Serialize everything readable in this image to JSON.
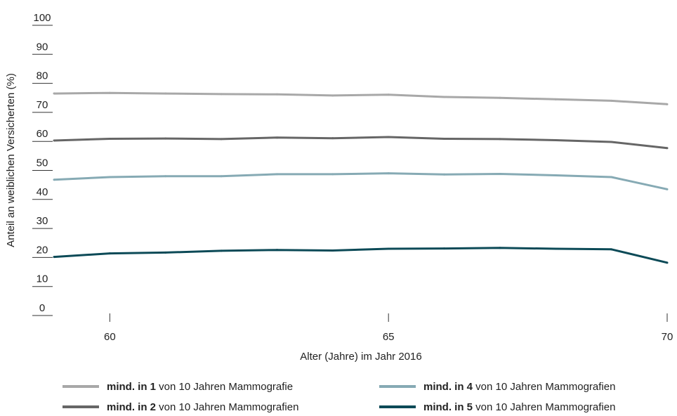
{
  "chart_data": {
    "type": "line",
    "xlabel": "Alter (Jahre) im Jahr 2016",
    "ylabel": "Anteil an weiblichen Versicherten (%)",
    "x": [
      59,
      60,
      61,
      62,
      63,
      64,
      65,
      66,
      67,
      68,
      69,
      70
    ],
    "xlim": [
      59,
      70
    ],
    "ylim": [
      0,
      100
    ],
    "xticks": [
      "60",
      "65",
      "70"
    ],
    "yticks": [
      "0",
      "10",
      "20",
      "30",
      "40",
      "50",
      "60",
      "70",
      "80",
      "90",
      "100"
    ],
    "grid": false,
    "legend_position": "bottom",
    "series": [
      {
        "name": "mind. in 1 von 10 Jahren Mammografie",
        "legend_bold": "mind. in 1",
        "legend_rest": " von 10 Jahren Mammografie",
        "color": "#a8a8a8",
        "values": [
          76.5,
          76.7,
          76.5,
          76.3,
          76.2,
          75.8,
          76.1,
          75.3,
          75.0,
          74.5,
          74.0,
          72.8
        ]
      },
      {
        "name": "mind. in 2 von 10 Jahren Mammografien",
        "legend_bold": "mind. in 2",
        "legend_rest": " von 10 Jahren Mammografien",
        "color": "#666666",
        "values": [
          60.3,
          60.9,
          61.0,
          60.8,
          61.3,
          61.1,
          61.5,
          60.9,
          60.8,
          60.4,
          59.8,
          57.7
        ]
      },
      {
        "name": "mind. in 4 von 10 Jahren Mammografien",
        "legend_bold": "mind. in 4",
        "legend_rest": " von 10 Jahren Mammografien",
        "color": "#86aab4",
        "values": [
          46.8,
          47.7,
          48.0,
          48.0,
          48.7,
          48.7,
          49.0,
          48.6,
          48.8,
          48.3,
          47.7,
          43.5
        ]
      },
      {
        "name": "mind. in 5 von 10 Jahren Mammografien",
        "legend_bold": "mind. in 5",
        "legend_rest": " von 10 Jahren Mammografien",
        "color": "#0c4a57",
        "values": [
          20.2,
          21.4,
          21.7,
          22.3,
          22.6,
          22.4,
          23.0,
          23.1,
          23.3,
          23.0,
          22.8,
          18.2
        ]
      }
    ]
  }
}
